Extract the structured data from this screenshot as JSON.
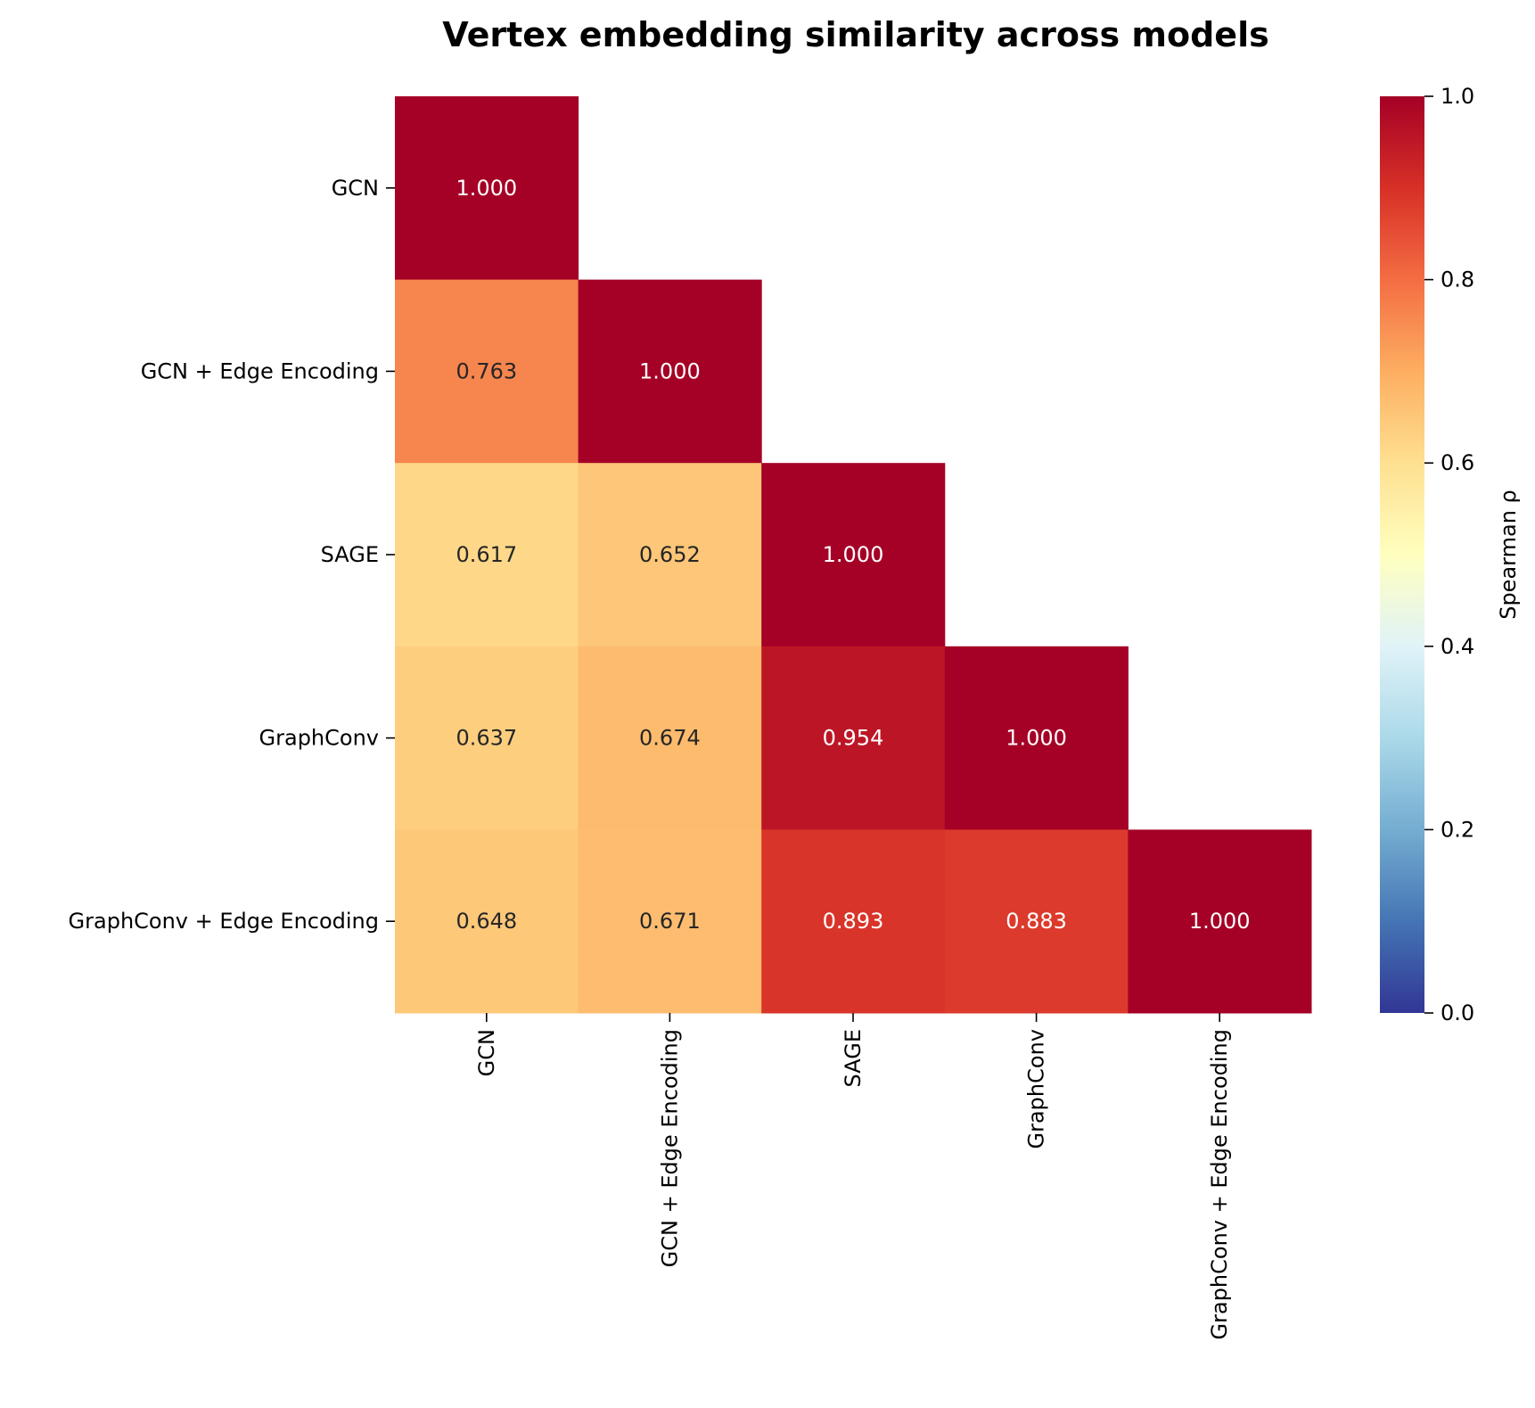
{
  "chart_data": {
    "type": "heatmap",
    "title": "Vertex embedding similarity across models",
    "xlabel": "",
    "ylabel": "",
    "mask": "upper-triangle (lower triangle incl. diagonal shown)",
    "row_labels": [
      "GCN",
      "GCN + Edge Encoding",
      "SAGE",
      "GraphConv",
      "GraphConv + Edge Encoding"
    ],
    "col_labels": [
      "GCN",
      "GCN + Edge Encoding",
      "SAGE",
      "GraphConv",
      "GraphConv + Edge Encoding"
    ],
    "values": [
      [
        1.0,
        null,
        null,
        null,
        null
      ],
      [
        0.763,
        1.0,
        null,
        null,
        null
      ],
      [
        0.617,
        0.652,
        1.0,
        null,
        null
      ],
      [
        0.637,
        0.674,
        0.954,
        1.0,
        null
      ],
      [
        0.648,
        0.671,
        0.893,
        0.883,
        1.0
      ]
    ],
    "annotations": [
      [
        "1.000",
        "",
        "",
        "",
        ""
      ],
      [
        "0.763",
        "1.000",
        "",
        "",
        ""
      ],
      [
        "0.617",
        "0.652",
        "1.000",
        "",
        ""
      ],
      [
        "0.637",
        "0.674",
        "0.954",
        "1.000",
        ""
      ],
      [
        "0.648",
        "0.671",
        "0.893",
        "0.883",
        "1.000"
      ]
    ],
    "colormap": "RdYlBu_r",
    "vmin": 0.0,
    "vmax": 1.0,
    "colorbar": {
      "label": "Spearman ρ",
      "ticks": [
        0.0,
        0.2,
        0.4,
        0.6,
        0.8,
        1.0
      ],
      "tick_labels": [
        "0.0",
        "0.2",
        "0.4",
        "0.6",
        "0.8",
        "1.0"
      ],
      "placement": "right"
    },
    "colormap_stops": [
      "#313695",
      "#4575b4",
      "#74add1",
      "#abd9e9",
      "#e0f3f8",
      "#ffffbf",
      "#fee090",
      "#fdae61",
      "#f46d43",
      "#d73027",
      "#a50026"
    ],
    "annotation_text_colors": {
      "dark": "#262626",
      "light": "#ffffff"
    },
    "grid": false
  }
}
